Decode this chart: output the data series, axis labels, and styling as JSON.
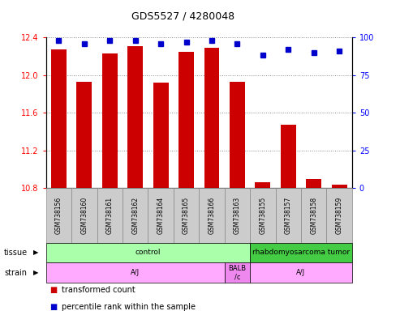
{
  "title": "GDS5527 / 4280048",
  "samples": [
    "GSM738156",
    "GSM738160",
    "GSM738161",
    "GSM738162",
    "GSM738164",
    "GSM738165",
    "GSM738166",
    "GSM738163",
    "GSM738155",
    "GSM738157",
    "GSM738158",
    "GSM738159"
  ],
  "bar_values": [
    12.27,
    11.93,
    12.23,
    12.31,
    11.92,
    12.25,
    12.29,
    11.93,
    10.86,
    11.47,
    10.9,
    10.84
  ],
  "percentile_values": [
    98,
    96,
    98,
    98,
    96,
    97,
    98,
    96,
    88,
    92,
    90,
    91
  ],
  "bar_color": "#cc0000",
  "percentile_color": "#0000cc",
  "ylim_left": [
    10.8,
    12.4
  ],
  "ylim_right": [
    0,
    100
  ],
  "yticks_left": [
    10.8,
    11.2,
    11.6,
    12.0,
    12.4
  ],
  "yticks_right": [
    0,
    25,
    50,
    75,
    100
  ],
  "tissue_labels": [
    {
      "text": "control",
      "start": 0,
      "end": 7,
      "color": "#aaffaa"
    },
    {
      "text": "rhabdomyosarcoma tumor",
      "start": 8,
      "end": 11,
      "color": "#44cc44"
    }
  ],
  "strain_labels": [
    {
      "text": "A/J",
      "start": 0,
      "end": 6,
      "color": "#ffaaff"
    },
    {
      "text": "BALB\n/c",
      "start": 7,
      "end": 7,
      "color": "#ee88ee"
    },
    {
      "text": "A/J",
      "start": 8,
      "end": 11,
      "color": "#ffaaff"
    }
  ],
  "tissue_row_label": "tissue",
  "strain_row_label": "strain",
  "legend_items": [
    {
      "label": "transformed count",
      "color": "#cc0000"
    },
    {
      "label": "percentile rank within the sample",
      "color": "#0000cc"
    }
  ],
  "bar_bottom": 10.8,
  "background_color": "#ffffff",
  "grid_color": "#888888",
  "xlabel_bg": "#cccccc",
  "xlabel_border": "#888888"
}
